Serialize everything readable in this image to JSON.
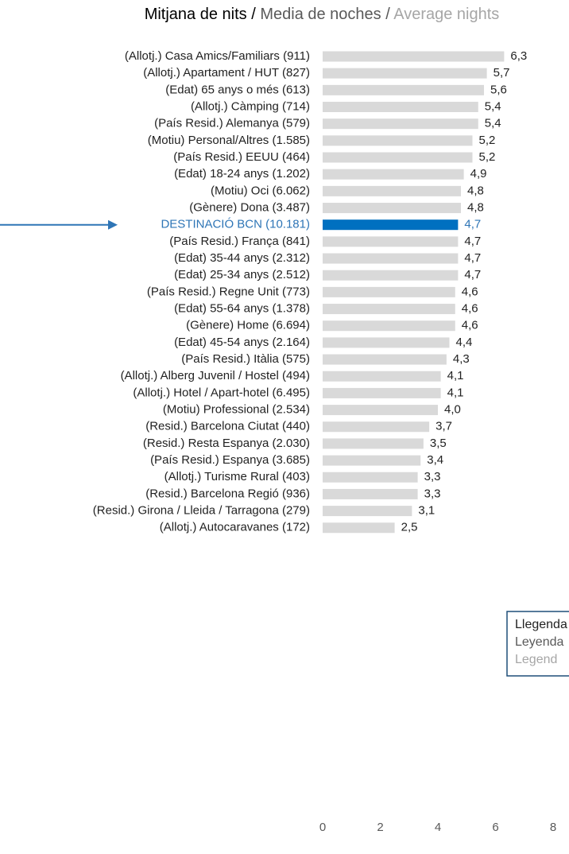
{
  "chart_data": {
    "type": "bar",
    "orientation": "horizontal",
    "title": [
      "Mitjana de nits /",
      "Media de noches /",
      "Average nights"
    ],
    "categories": [
      "(Allotj.) Casa Amics/Familiars (911)",
      "(Allotj.) Apartament / HUT (827)",
      "(Edat) 65 anys o més (613)",
      "(Allotj.) Càmping (714)",
      "(País Resid.) Alemanya (579)",
      "(Motiu) Personal/Altres (1.585)",
      "(País Resid.) EEUU (464)",
      "(Edat) 18-24 anys (1.202)",
      "(Motiu) Oci (6.062)",
      "(Gènere) Dona (3.487)",
      "DESTINACIÓ BCN (10.181)",
      "(País Resid.) França (841)",
      "(Edat) 35-44 anys (2.312)",
      "(Edat) 25-34 anys  (2.512)",
      "(País Resid.) Regne Unit (773)",
      "(Edat) 55-64 anys (1.378)",
      "(Gènere) Home (6.694)",
      "(Edat) 45-54 anys (2.164)",
      "(País Resid.) Itàlia (575)",
      "(Allotj.) Alberg Juvenil / Hostel  (494)",
      "(Allotj.) Hotel / Apart-hotel (6.495)",
      "(Motiu) Professional (2.534)",
      "(Resid.) Barcelona Ciutat (440)",
      "(Resid.) Resta Espanya (2.030)",
      "(País Resid.) Espanya (3.685)",
      "(Allotj.) Turisme Rural (403)",
      "(Resid.) Barcelona Regió (936)",
      "(Resid.) Girona / Lleida / Tarragona (279)",
      "(Allotj.) Autocaravanes (172)"
    ],
    "values": [
      6.3,
      5.7,
      5.6,
      5.4,
      5.4,
      5.2,
      5.2,
      4.9,
      4.8,
      4.8,
      4.7,
      4.7,
      4.7,
      4.7,
      4.6,
      4.6,
      4.6,
      4.4,
      4.3,
      4.1,
      4.1,
      4.0,
      3.7,
      3.5,
      3.4,
      3.3,
      3.3,
      3.1,
      2.5
    ],
    "value_labels": [
      "6,3",
      "5,7",
      "5,6",
      "5,4",
      "5,4",
      "5,2",
      "5,2",
      "4,9",
      "4,8",
      "4,8",
      "4,7",
      "4,7",
      "4,7",
      "4,7",
      "4,6",
      "4,6",
      "4,6",
      "4,4",
      "4,3",
      "4,1",
      "4,1",
      "4,0",
      "3,7",
      "3,5",
      "3,4",
      "3,3",
      "3,3",
      "3,1",
      "2,5"
    ],
    "color": "#d9d9d9",
    "highlight": 10,
    "highlight_color": "#0070c0",
    "xlim": [
      0,
      8
    ],
    "xticks": [
      0,
      2,
      4,
      6,
      8
    ],
    "legend": {
      "title": [
        "Llegenda",
        "Leyenda",
        "Legend"
      ]
    }
  }
}
